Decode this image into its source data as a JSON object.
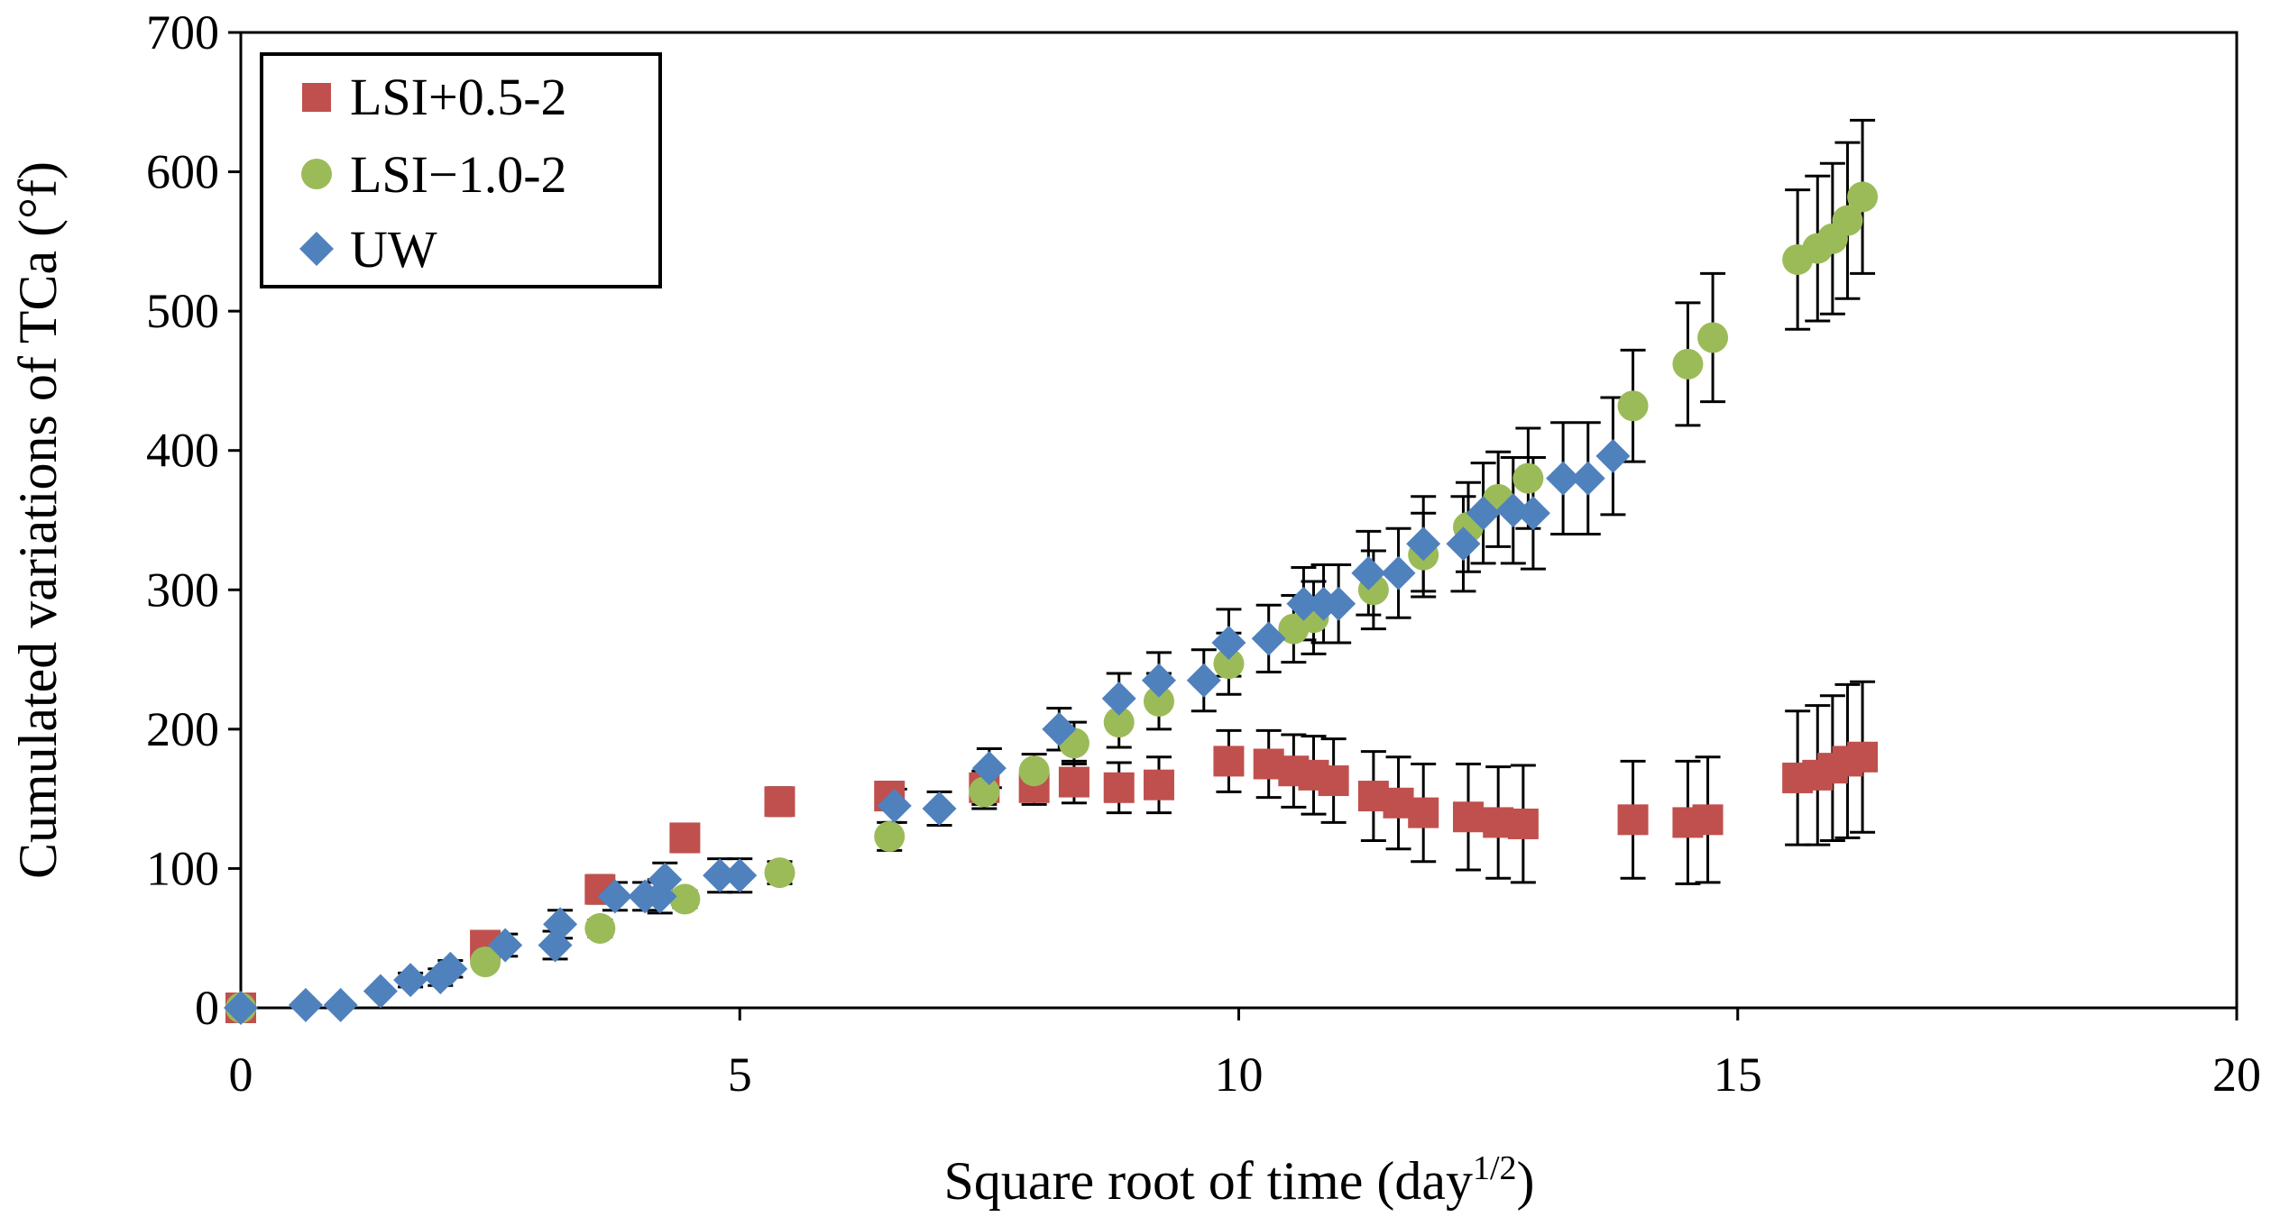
{
  "chart_data": {
    "type": "scatter",
    "title": "",
    "xlabel": "Square root of time (day",
    "xlabel_sup": "1/2",
    "xlabel_suffix": ")",
    "ylabel": "Cumulated variations of TCa (°f)",
    "xlim": [
      0,
      20
    ],
    "ylim": [
      0,
      700
    ],
    "xticks": [
      0,
      5,
      10,
      15,
      20
    ],
    "yticks": [
      0,
      100,
      200,
      300,
      400,
      500,
      600,
      700
    ],
    "grid": false,
    "legend_position": "top-left",
    "series": [
      {
        "name": "LSI+0.5-2",
        "marker": "square",
        "color": "#C0504D",
        "points": [
          [
            0,
            0,
            0
          ],
          [
            2.45,
            45,
            8
          ],
          [
            3.6,
            85,
            10
          ],
          [
            4.45,
            122,
            10
          ],
          [
            5.4,
            148,
            10
          ],
          [
            6.5,
            152,
            10
          ],
          [
            7.45,
            158,
            12
          ],
          [
            7.95,
            158,
            12
          ],
          [
            8.35,
            162,
            15
          ],
          [
            8.8,
            158,
            18
          ],
          [
            9.2,
            160,
            20
          ],
          [
            9.9,
            177,
            22
          ],
          [
            10.3,
            175,
            24
          ],
          [
            10.55,
            170,
            26
          ],
          [
            10.75,
            167,
            28
          ],
          [
            10.95,
            163,
            30
          ],
          [
            11.35,
            152,
            32
          ],
          [
            11.6,
            147,
            33
          ],
          [
            11.85,
            140,
            35
          ],
          [
            12.3,
            137,
            38
          ],
          [
            12.6,
            133,
            40
          ],
          [
            12.85,
            132,
            42
          ],
          [
            13.95,
            135,
            42
          ],
          [
            14.5,
            133,
            44
          ],
          [
            14.7,
            135,
            45
          ],
          [
            15.6,
            165,
            48
          ],
          [
            15.8,
            167,
            50
          ],
          [
            15.95,
            172,
            52
          ],
          [
            16.1,
            177,
            55
          ],
          [
            16.25,
            180,
            54
          ]
        ]
      },
      {
        "name": "LSI−1.0-2",
        "marker": "circle",
        "color": "#9BBB59",
        "points": [
          [
            0,
            0,
            0
          ],
          [
            2.45,
            33,
            5
          ],
          [
            3.6,
            57,
            6
          ],
          [
            4.45,
            78,
            6
          ],
          [
            5.4,
            97,
            8
          ],
          [
            6.5,
            123,
            10
          ],
          [
            7.45,
            155,
            12
          ],
          [
            7.95,
            170,
            12
          ],
          [
            8.35,
            190,
            15
          ],
          [
            8.8,
            205,
            18
          ],
          [
            9.2,
            220,
            20
          ],
          [
            9.9,
            247,
            22
          ],
          [
            10.55,
            272,
            24
          ],
          [
            10.75,
            280,
            26
          ],
          [
            11.35,
            300,
            28
          ],
          [
            11.85,
            325,
            30
          ],
          [
            12.3,
            345,
            32
          ],
          [
            12.6,
            365,
            34
          ],
          [
            12.9,
            380,
            36
          ],
          [
            13.95,
            432,
            40
          ],
          [
            14.5,
            462,
            44
          ],
          [
            14.75,
            481,
            46
          ],
          [
            15.6,
            537,
            50
          ],
          [
            15.8,
            545,
            52
          ],
          [
            15.95,
            552,
            54
          ],
          [
            16.1,
            565,
            56
          ],
          [
            16.25,
            582,
            55
          ]
        ]
      },
      {
        "name": "UW",
        "marker": "diamond",
        "color": "#4F81BD",
        "points": [
          [
            0,
            0,
            0
          ],
          [
            0.65,
            2,
            0
          ],
          [
            1.0,
            2,
            0
          ],
          [
            1.4,
            12,
            0
          ],
          [
            1.7,
            20,
            5
          ],
          [
            2.0,
            22,
            6
          ],
          [
            2.1,
            28,
            6
          ],
          [
            2.65,
            45,
            8
          ],
          [
            3.15,
            45,
            10
          ],
          [
            3.2,
            60,
            10
          ],
          [
            3.75,
            80,
            10
          ],
          [
            4.05,
            80,
            10
          ],
          [
            4.2,
            80,
            12
          ],
          [
            4.25,
            92,
            12
          ],
          [
            4.8,
            95,
            12
          ],
          [
            5.0,
            95,
            12
          ],
          [
            6.55,
            145,
            12
          ],
          [
            7.0,
            143,
            12
          ],
          [
            7.5,
            172,
            14
          ],
          [
            8.2,
            200,
            15
          ],
          [
            8.8,
            222,
            18
          ],
          [
            9.2,
            235,
            20
          ],
          [
            9.65,
            235,
            22
          ],
          [
            9.9,
            262,
            24
          ],
          [
            10.3,
            265,
            24
          ],
          [
            10.65,
            290,
            26
          ],
          [
            10.85,
            290,
            28
          ],
          [
            11.0,
            290,
            28
          ],
          [
            11.3,
            312,
            30
          ],
          [
            11.6,
            312,
            32
          ],
          [
            11.85,
            333,
            34
          ],
          [
            12.25,
            333,
            34
          ],
          [
            12.45,
            355,
            36
          ],
          [
            12.75,
            357,
            38
          ],
          [
            12.95,
            355,
            40
          ],
          [
            13.25,
            380,
            40
          ],
          [
            13.5,
            380,
            40
          ],
          [
            13.75,
            396,
            42
          ]
        ]
      }
    ]
  }
}
